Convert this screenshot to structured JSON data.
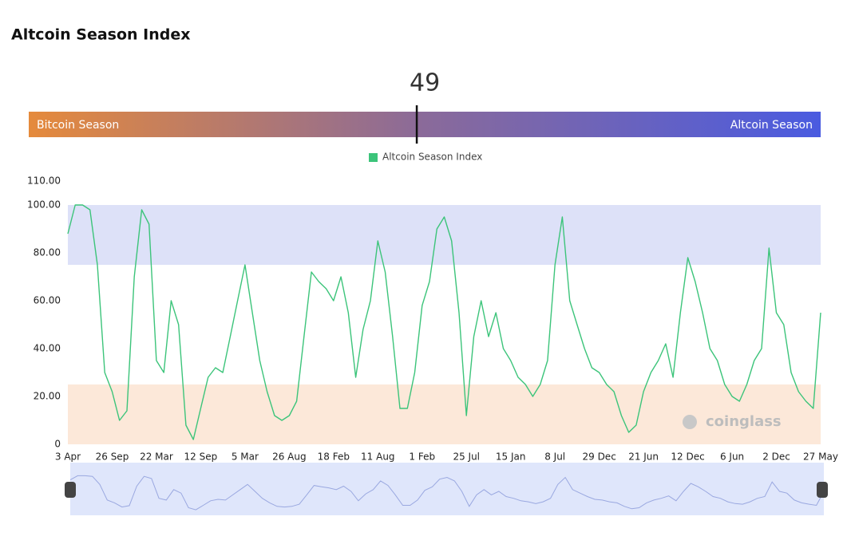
{
  "chart_data": [
    {
      "type": "gauge",
      "title": "Altcoin Season Index",
      "value": 49,
      "min": 0,
      "max": 100,
      "left_label": "Bitcoin Season",
      "right_label": "Altcoin Season",
      "colors": [
        "#e58a3c",
        "#8a6a9a",
        "#4a5be0"
      ]
    },
    {
      "type": "line",
      "legend": "Altcoin Season Index",
      "color": "#3cc47a",
      "categories": [
        "3 Apr",
        null,
        null,
        null,
        null,
        null,
        "26 Sep",
        null,
        null,
        null,
        null,
        null,
        "22 Mar",
        null,
        null,
        null,
        null,
        null,
        "12 Sep",
        null,
        null,
        null,
        null,
        null,
        "5 Mar",
        null,
        null,
        null,
        null,
        null,
        "26 Aug",
        null,
        null,
        null,
        null,
        null,
        "18 Feb",
        null,
        null,
        null,
        null,
        null,
        "11 Aug",
        null,
        null,
        null,
        null,
        null,
        "1 Feb",
        null,
        null,
        null,
        null,
        null,
        "25 Jul",
        null,
        null,
        null,
        null,
        null,
        "15 Jan",
        null,
        null,
        null,
        null,
        null,
        "8 Jul",
        null,
        null,
        null,
        null,
        null,
        "29 Dec",
        null,
        null,
        null,
        null,
        null,
        "21 Jun",
        null,
        null,
        null,
        null,
        null,
        "12 Dec",
        null,
        null,
        null,
        null,
        null,
        "6 Jun",
        null,
        null,
        null,
        null,
        null,
        "2 Dec",
        null,
        null,
        null,
        null,
        null,
        "27 May"
      ],
      "values": [
        88,
        100,
        100,
        98,
        75,
        30,
        22,
        10,
        14,
        70,
        98,
        92,
        35,
        30,
        60,
        50,
        8,
        2,
        15,
        28,
        32,
        30,
        45,
        60,
        75,
        55,
        35,
        22,
        12,
        10,
        12,
        18,
        45,
        72,
        68,
        65,
        60,
        70,
        55,
        28,
        48,
        60,
        85,
        72,
        45,
        15,
        15,
        30,
        58,
        68,
        90,
        95,
        85,
        55,
        12,
        45,
        60,
        45,
        55,
        40,
        35,
        28,
        25,
        20,
        25,
        35,
        75,
        95,
        60,
        50,
        40,
        32,
        30,
        25,
        22,
        12,
        5,
        8,
        22,
        30,
        35,
        42,
        28,
        55,
        78,
        68,
        55,
        40,
        35,
        25,
        20,
        18,
        25,
        35,
        40,
        82,
        55,
        50,
        30,
        22,
        18,
        15,
        55
      ],
      "ylim": [
        0,
        110
      ],
      "yticks": [
        0,
        {
          "value": 20,
          "label": "20.00"
        },
        {
          "value": 40,
          "label": "40.00"
        },
        {
          "value": 60,
          "label": "60.00"
        },
        {
          "value": 80,
          "label": "80.00"
        },
        {
          "value": 100,
          "label": "100.00"
        },
        {
          "value": 110,
          "label": "110.00"
        }
      ],
      "bands": [
        {
          "range": [
            75,
            100
          ],
          "color": "#dde1f8"
        },
        {
          "range": [
            0,
            25
          ],
          "color": "#fce8d9"
        }
      ],
      "watermark": "coinglass"
    }
  ]
}
